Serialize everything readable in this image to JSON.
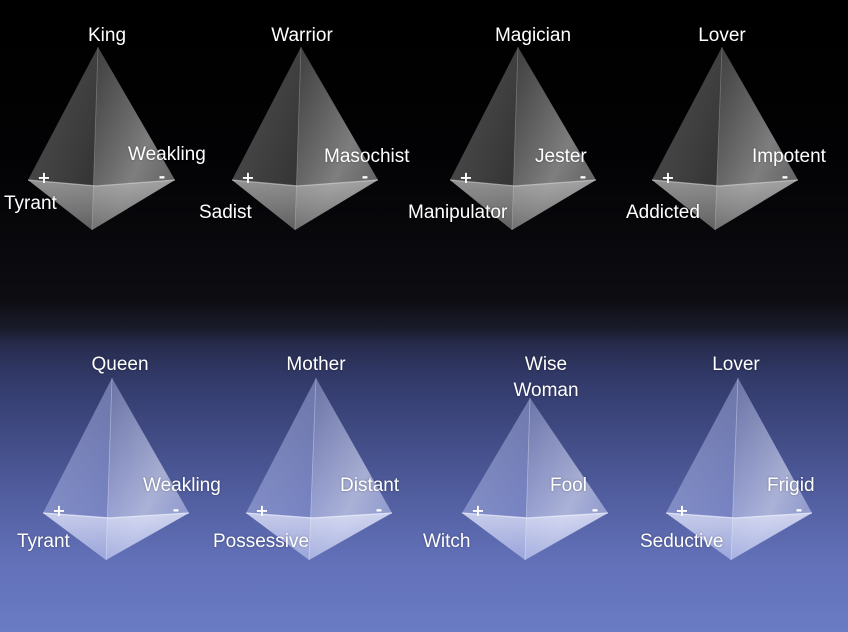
{
  "archetypes": {
    "male": [
      {
        "name": "King",
        "plus_pole": "Tyrant",
        "minus_pole": "Weakling"
      },
      {
        "name": "Warrior",
        "plus_pole": "Sadist",
        "minus_pole": "Masochist"
      },
      {
        "name": "Magician",
        "plus_pole": "Manipulator",
        "minus_pole": "Jester"
      },
      {
        "name": "Lover",
        "plus_pole": "Addicted",
        "minus_pole": "Impotent"
      }
    ],
    "female": [
      {
        "name": "Queen",
        "plus_pole": "Tyrant",
        "minus_pole": "Weakling"
      },
      {
        "name": "Mother",
        "plus_pole": "Possessive",
        "minus_pole": "Distant"
      },
      {
        "name_line1": "Wise",
        "name_line2": "Woman",
        "plus_pole": "Witch",
        "minus_pole": "Fool"
      },
      {
        "name": "Lover",
        "plus_pole": "Seductive",
        "minus_pole": "Frigid"
      }
    ]
  },
  "symbols": {
    "plus": "+",
    "minus": "-"
  },
  "colors": {
    "background_top": "#000000",
    "background_bottom": "#6a7cc4",
    "label_text": "#ffffff"
  }
}
